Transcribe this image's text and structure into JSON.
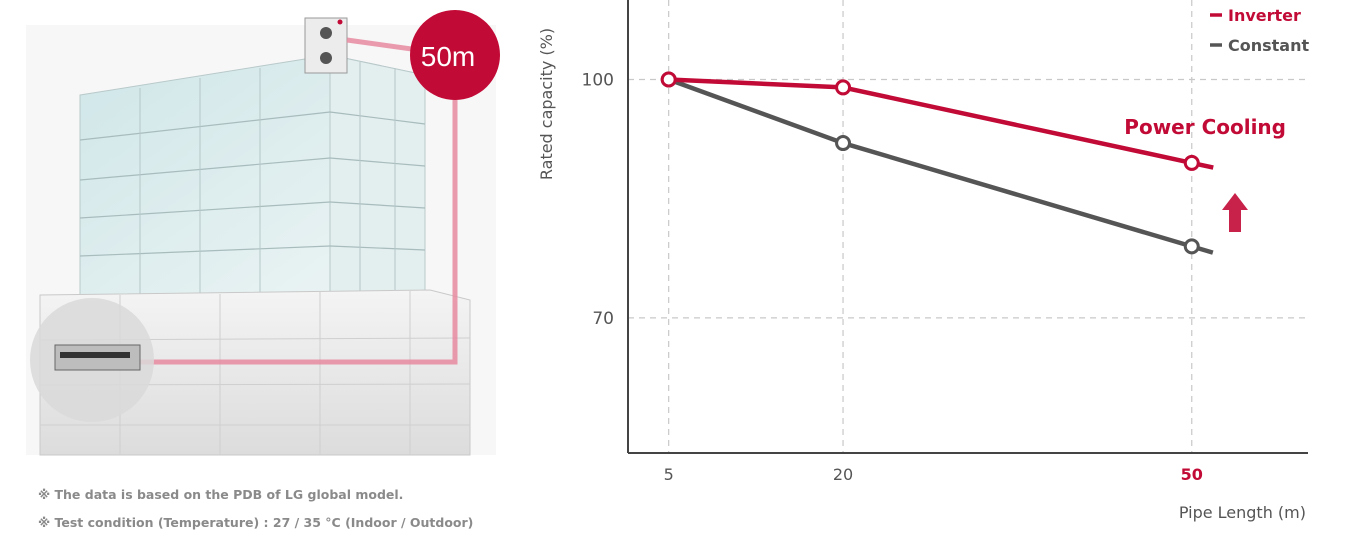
{
  "illustration": {
    "badge_label": "50m"
  },
  "notes": [
    "※ The data is based on the PDB of LG global model.",
    "※ Test condition (Temperature) : 27 / 35 °C (Indoor / Outdoor)"
  ],
  "colors": {
    "inverter": "#c20a36",
    "constant": "#555555",
    "grid": "#c8c8c8",
    "axis": "#444444"
  },
  "chart_data": {
    "type": "line",
    "ylabel": "Rated capacity (%)",
    "xlabel": "Pipe Length (m)",
    "x": [
      5,
      20,
      50
    ],
    "x_tick_labels": [
      "5",
      "20",
      "50"
    ],
    "y_ticks": [
      100,
      70
    ],
    "xlim": [
      1.5,
      60
    ],
    "ylim": [
      53,
      110
    ],
    "grid": true,
    "legend_position": "top-right",
    "series": [
      {
        "name": "Inverter",
        "values": [
          100,
          99,
          89.5
        ],
        "color": "#c20a36"
      },
      {
        "name": "Constant",
        "values": [
          100,
          92,
          79
        ],
        "color": "#555555"
      }
    ],
    "annotation": "Power Cooling",
    "highlight_x_label": "50"
  }
}
